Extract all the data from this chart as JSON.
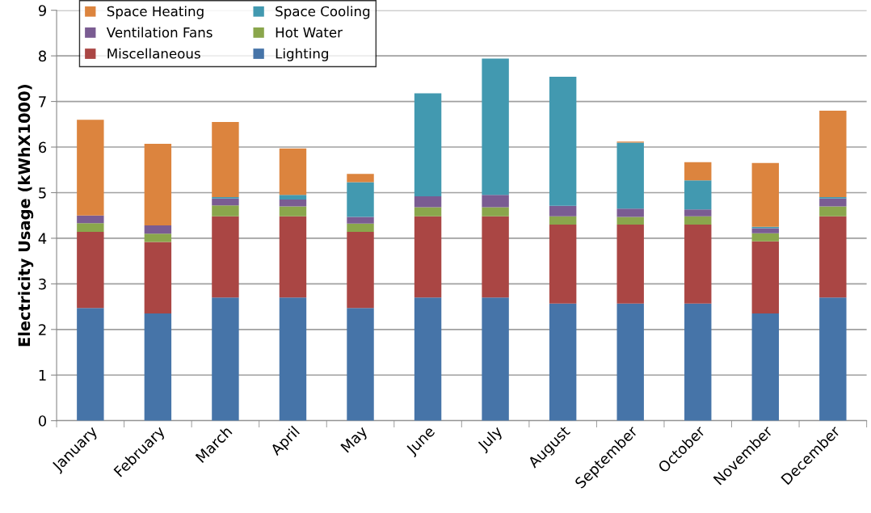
{
  "chart_data": {
    "type": "bar",
    "stacked": true,
    "ylabel": "Electricity Usage (kWhX1000)",
    "categories": [
      "January",
      "February",
      "March",
      "April",
      "May",
      "June",
      "July",
      "August",
      "September",
      "October",
      "November",
      "December"
    ],
    "series": [
      {
        "name": "Lighting",
        "color": "#4674a8",
        "values": [
          2.47,
          2.35,
          2.7,
          2.7,
          2.47,
          2.7,
          2.7,
          2.57,
          2.57,
          2.57,
          2.35,
          2.7
        ]
      },
      {
        "name": "Miscellaneous",
        "color": "#aa4644",
        "values": [
          1.67,
          1.57,
          1.78,
          1.78,
          1.67,
          1.78,
          1.78,
          1.73,
          1.73,
          1.73,
          1.58,
          1.78
        ]
      },
      {
        "name": "Hot Water",
        "color": "#8aa64c",
        "values": [
          0.19,
          0.18,
          0.24,
          0.22,
          0.18,
          0.2,
          0.2,
          0.18,
          0.17,
          0.18,
          0.18,
          0.22
        ]
      },
      {
        "name": "Ventilation Fans",
        "color": "#7a5c92",
        "values": [
          0.17,
          0.18,
          0.15,
          0.15,
          0.15,
          0.24,
          0.27,
          0.23,
          0.18,
          0.15,
          0.11,
          0.17
        ]
      },
      {
        "name": "Space Cooling",
        "color": "#4299b0",
        "values": [
          0,
          0,
          0.03,
          0.1,
          0.76,
          2.26,
          2.99,
          2.83,
          1.45,
          0.64,
          0.03,
          0.03
        ]
      },
      {
        "name": "Space Heating",
        "color": "#dc843e",
        "values": [
          2.1,
          1.79,
          1.65,
          1.02,
          0.18,
          0,
          0,
          0,
          0.02,
          0.4,
          1.4,
          1.9
        ]
      }
    ],
    "ylim": [
      0,
      9
    ],
    "yticks": [
      0,
      1,
      2,
      3,
      4,
      5,
      6,
      7,
      8,
      9
    ],
    "grid": "y",
    "legend": "top left"
  }
}
